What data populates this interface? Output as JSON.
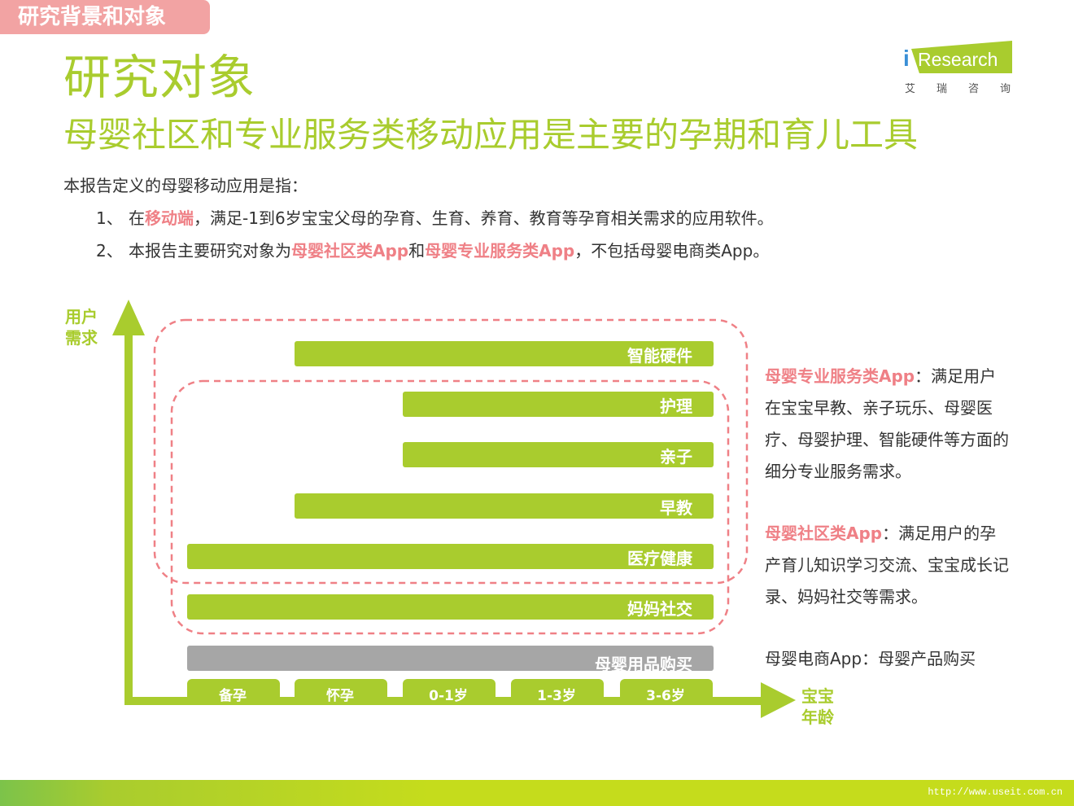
{
  "section_tag": "研究背景和对象",
  "title": "研究对象",
  "subtitle": "母婴社区和专业服务类移动应用是主要的孕期和育儿工具",
  "logo": {
    "brand_i": "i",
    "brand_rest": "Research",
    "sub": "艾瑞咨询"
  },
  "intro": "本报告定义的母婴移动应用是指：",
  "points": [
    {
      "num": "1、",
      "pre": "在",
      "hl": "移动端",
      "post": "，满足-1到6岁宝宝父母的孕育、生育、养育、教育等孕育相关需求的应用软件。"
    },
    {
      "num": "2、",
      "pre": "本报告主要研究对象为",
      "hl": "母婴社区类App",
      "mid": "和",
      "hl2": "母婴专业服务类App",
      "post": "，不包括母婴电商类App。"
    }
  ],
  "diagram": {
    "y_axis_label": "用户需求",
    "x_axis_label": "宝宝年龄",
    "stages": [
      "备孕",
      "怀孕",
      "0-1岁",
      "1-3岁",
      "3-6岁"
    ],
    "bars": [
      {
        "label": "智能硬件",
        "start_stage": 1
      },
      {
        "label": "护理",
        "start_stage": 2
      },
      {
        "label": "亲子",
        "start_stage": 2
      },
      {
        "label": "早教",
        "start_stage": 1
      },
      {
        "label": "医疗健康",
        "start_stage": 0
      },
      {
        "label": "妈妈社交",
        "start_stage": 0
      },
      {
        "label": "母婴用品购买",
        "start_stage": 0
      }
    ],
    "colors": {
      "green": "#a9cc2e",
      "gray": "#a6a6a6",
      "pink": "#ef8086"
    }
  },
  "descriptions": [
    {
      "lead": "母婴专业服务类App",
      "text": "：满足用户在宝宝早教、亲子玩乐、母婴医疗、母婴护理、智能硬件等方面的细分专业服务需求。"
    },
    {
      "lead": "母婴社区类App",
      "text": "：满足用户的孕产育儿知识学习交流、宝宝成长记录、妈妈社交等需求。"
    },
    {
      "lead": "",
      "text": "母婴电商App：母婴产品购买"
    }
  ],
  "footer": {
    "watermark": "http://www.useit.com.cn"
  }
}
